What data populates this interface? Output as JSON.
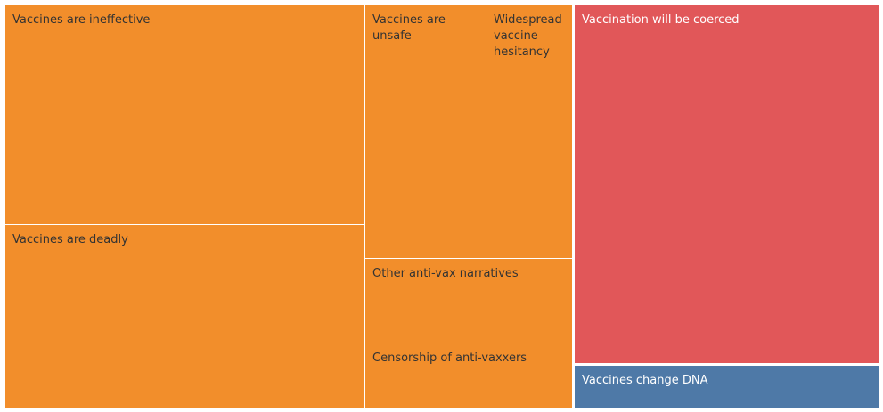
{
  "chart_data": {
    "type": "treemap",
    "title": "",
    "colors": {
      "orange": "#F28E2B",
      "red": "#E15759",
      "blue": "#4E79A7",
      "dark_text": "#333333",
      "light_text": "#FFFFFF"
    },
    "tiles": [
      {
        "label": "Vaccines are ineffective",
        "color": "#F28E2B",
        "text_color": "#333333"
      },
      {
        "label": "Vaccines are deadly",
        "color": "#F28E2B",
        "text_color": "#333333"
      },
      {
        "label": "Vaccines are unsafe",
        "color": "#F28E2B",
        "text_color": "#333333"
      },
      {
        "label": "Widespread vaccine hesitancy",
        "color": "#F28E2B",
        "text_color": "#333333"
      },
      {
        "label": "Other anti-vax narratives",
        "color": "#F28E2B",
        "text_color": "#333333"
      },
      {
        "label": "Censorship of anti-vaxxers",
        "color": "#F28E2B",
        "text_color": "#333333"
      },
      {
        "label": "Vaccination will be coerced",
        "color": "#E15759",
        "text_color": "#FFFFFF"
      },
      {
        "label": "Vaccines change DNA",
        "color": "#4E79A7",
        "text_color": "#FFFFFF"
      }
    ]
  }
}
